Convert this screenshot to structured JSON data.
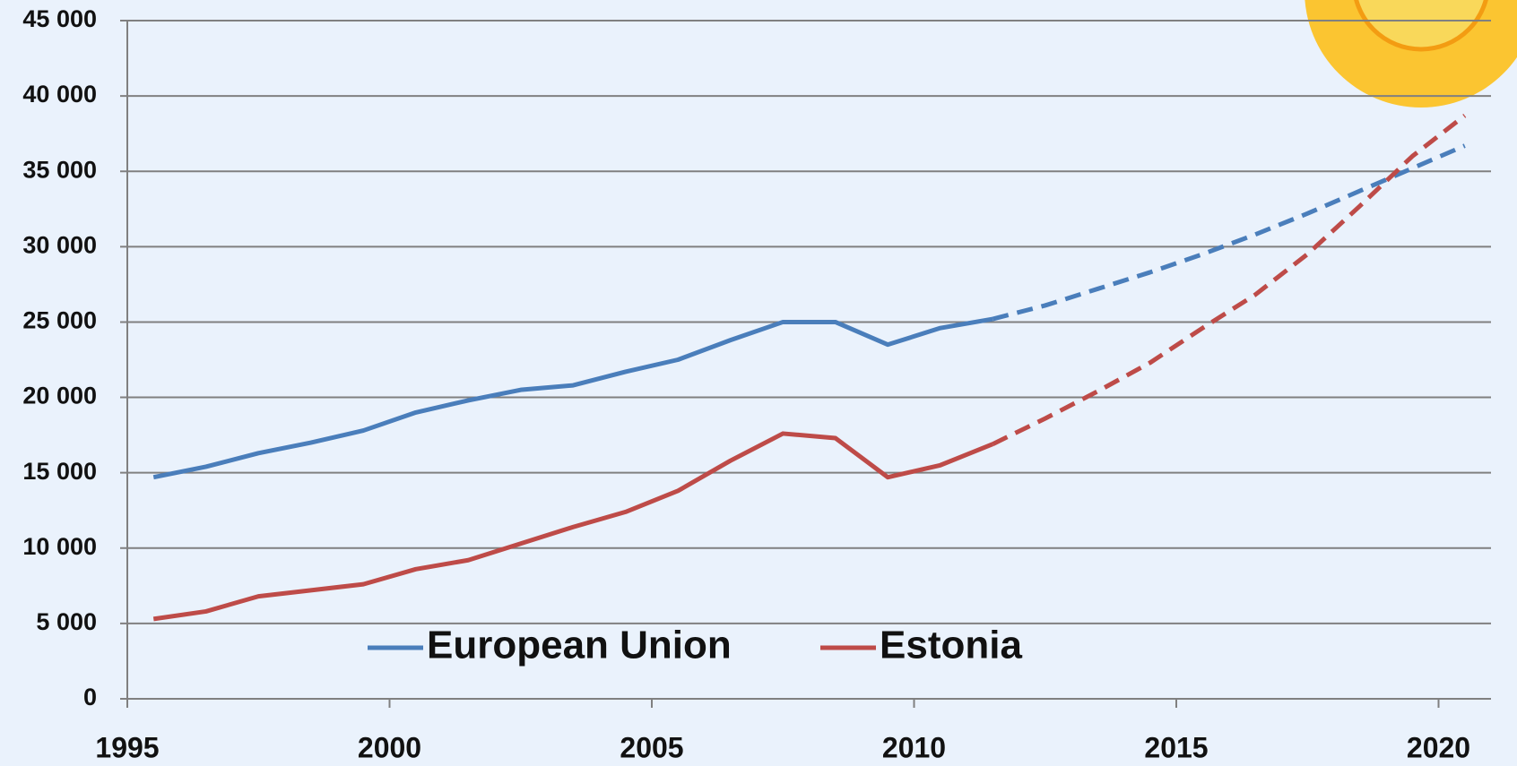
{
  "chart_data": {
    "type": "line",
    "x": [
      1995.5,
      1996.5,
      1997.5,
      1998.5,
      1999.5,
      2000.5,
      2001.5,
      2002.5,
      2003.5,
      2004.5,
      2005.5,
      2006.5,
      2007.5,
      2008.5,
      2009.5,
      2010.5,
      2011.5,
      2012.5,
      2013.5,
      2014.5,
      2015.5,
      2016.5,
      2017.5,
      2018.5,
      2019.5,
      2020.5
    ],
    "forecast_from": 2011.5,
    "series": [
      {
        "name": "European Union",
        "color": "#4a7ebb",
        "values": [
          14700,
          15400,
          16300,
          17000,
          17800,
          19000,
          19800,
          20500,
          20800,
          21700,
          22500,
          23800,
          25000,
          25000,
          23500,
          24600,
          25200,
          26100,
          27200,
          28300,
          29500,
          30800,
          32200,
          33700,
          35200,
          36700
        ]
      },
      {
        "name": "Estonia",
        "color": "#be4b48",
        "values": [
          5300,
          5800,
          6800,
          7200,
          7600,
          8600,
          9200,
          10300,
          11400,
          12400,
          13800,
          15800,
          17600,
          17300,
          14700,
          15500,
          16900,
          18600,
          20400,
          22300,
          24600,
          26800,
          29500,
          32700,
          36000,
          38700
        ]
      }
    ],
    "xlim": [
      1995,
      2021
    ],
    "xticks": [
      1995,
      2000,
      2005,
      2010,
      2015,
      2020
    ],
    "ylim": [
      0,
      45000
    ],
    "yticks": [
      0,
      {
        "value": 5000,
        "label": "5 000"
      },
      {
        "value": 10000,
        "label": "10 000"
      },
      {
        "value": 15000,
        "label": "15 000"
      },
      {
        "value": 20000,
        "label": "20 000"
      },
      {
        "value": 25000,
        "label": "25 000"
      },
      {
        "value": 30000,
        "label": "30 000"
      },
      {
        "value": 35000,
        "label": "35 000"
      },
      {
        "value": 40000,
        "label": "40 000"
      },
      {
        "value": 45000,
        "label": "45 000"
      }
    ],
    "grid": true
  }
}
